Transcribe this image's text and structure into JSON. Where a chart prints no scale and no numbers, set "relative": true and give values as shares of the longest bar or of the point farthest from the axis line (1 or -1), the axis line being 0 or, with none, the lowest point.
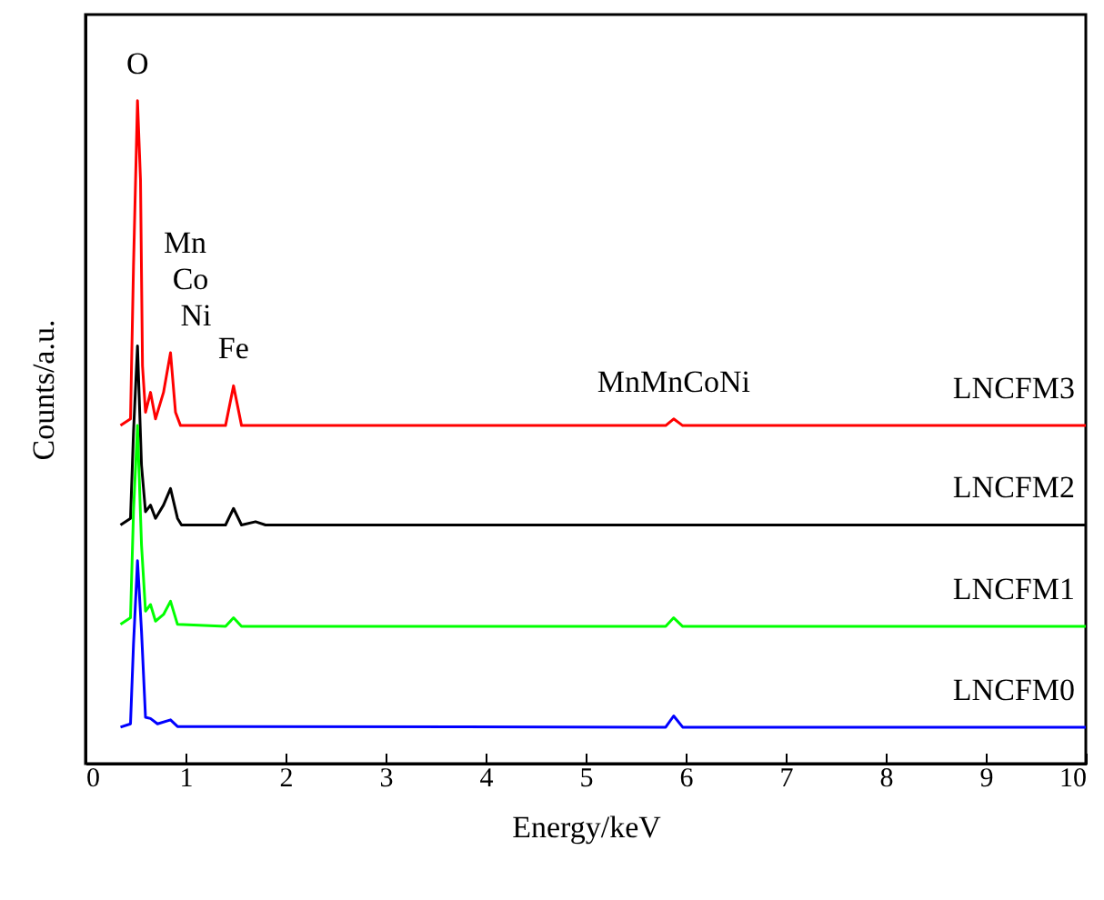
{
  "chart_data": {
    "type": "line",
    "xlabel": "Energy/keV",
    "ylabel": "Counts/a.u.",
    "relative": true,
    "xlim": [
      0,
      10
    ],
    "xticks": [
      0,
      1,
      2,
      3,
      4,
      5,
      6,
      7,
      8,
      9,
      10
    ],
    "grid": false,
    "series": [
      {
        "name": "LNCFM3",
        "color": "#ff0000",
        "x": [
          0.35,
          0.45,
          0.48,
          0.52,
          0.55,
          0.57,
          0.6,
          0.65,
          0.7,
          0.78,
          0.85,
          0.9,
          0.95,
          1.4,
          1.48,
          1.56,
          2.0,
          5.8,
          5.88,
          5.97,
          10
        ],
        "values": [
          0.51,
          0.52,
          0.75,
          1.0,
          0.88,
          0.6,
          0.53,
          0.56,
          0.52,
          0.56,
          0.62,
          0.53,
          0.51,
          0.51,
          0.57,
          0.51,
          0.51,
          0.51,
          0.52,
          0.51,
          0.51
        ]
      },
      {
        "name": "LNCFM2",
        "color": "#000000",
        "x": [
          0.35,
          0.45,
          0.48,
          0.52,
          0.56,
          0.6,
          0.65,
          0.7,
          0.78,
          0.85,
          0.92,
          0.96,
          1.4,
          1.48,
          1.56,
          1.7,
          1.8,
          10
        ],
        "values": [
          0.36,
          0.37,
          0.5,
          0.63,
          0.45,
          0.38,
          0.39,
          0.37,
          0.39,
          0.415,
          0.37,
          0.36,
          0.36,
          0.385,
          0.36,
          0.365,
          0.36,
          0.36
        ]
      },
      {
        "name": "LNCFM1",
        "color": "#00ff00",
        "x": [
          0.35,
          0.45,
          0.48,
          0.52,
          0.56,
          0.6,
          0.65,
          0.7,
          0.78,
          0.85,
          0.92,
          1.4,
          1.48,
          1.56,
          5.8,
          5.88,
          5.97,
          10
        ],
        "values": [
          0.21,
          0.22,
          0.38,
          0.51,
          0.33,
          0.23,
          0.24,
          0.215,
          0.225,
          0.245,
          0.21,
          0.207,
          0.22,
          0.207,
          0.207,
          0.22,
          0.207,
          0.207
        ]
      },
      {
        "name": "LNCFM0",
        "color": "#0000ff",
        "x": [
          0.35,
          0.45,
          0.48,
          0.52,
          0.56,
          0.6,
          0.65,
          0.72,
          0.85,
          0.92,
          5.8,
          5.88,
          5.97,
          10
        ],
        "values": [
          0.055,
          0.06,
          0.18,
          0.306,
          0.2,
          0.07,
          0.068,
          0.06,
          0.066,
          0.056,
          0.055,
          0.072,
          0.055,
          0.055
        ]
      }
    ],
    "annotations": [
      {
        "text": "O",
        "x": 0.52,
        "y": 1.0
      },
      "Mn",
      "Co",
      {
        "text": "Ni",
        "x": 0.85,
        "y": 0.62
      },
      {
        "text": "Fe",
        "x": 1.48,
        "y": 0.57
      },
      {
        "text": "MnMnCoNi",
        "x": 5.88,
        "y": 0.52
      }
    ]
  }
}
